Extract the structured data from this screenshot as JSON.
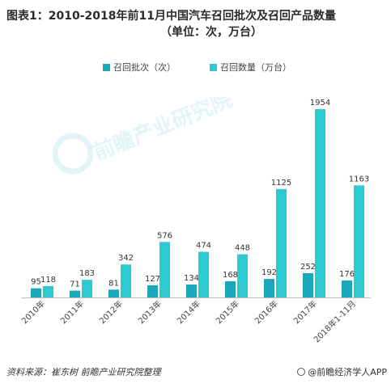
{
  "title_line1": "图表1：2010-2018年前11月中国汽车召回批次及召回产品数量",
  "title_line2": "（单位：次，万台）",
  "footer": {
    "source": "资料来源：崔东树  前瞻产业研究院整理",
    "brand": "@前瞻经济学人APP"
  },
  "watermark": {
    "text": "前瞻产业研究院",
    "icon": "qianzhan-logo-icon"
  },
  "colors": {
    "batches": "#1aa8b8",
    "quantity": "#2ec9d2"
  },
  "chart_data": {
    "type": "bar",
    "categories": [
      "2010年",
      "2011年",
      "2012年",
      "2013年",
      "2014年",
      "2015年",
      "2016年",
      "2017年",
      "2018年1-11月"
    ],
    "series": [
      {
        "name": "召回批次（次）",
        "values": [
          95,
          71,
          81,
          127,
          134,
          168,
          192,
          252,
          176
        ]
      },
      {
        "name": "召回数量（万台）",
        "values": [
          118,
          183,
          342,
          576,
          474,
          448,
          1125,
          1954,
          1163
        ]
      }
    ],
    "xlabel": "",
    "ylabel": "",
    "ylim": [
      0,
      1954
    ],
    "grid": false,
    "legend_position": "top-center",
    "data_labels": true
  }
}
